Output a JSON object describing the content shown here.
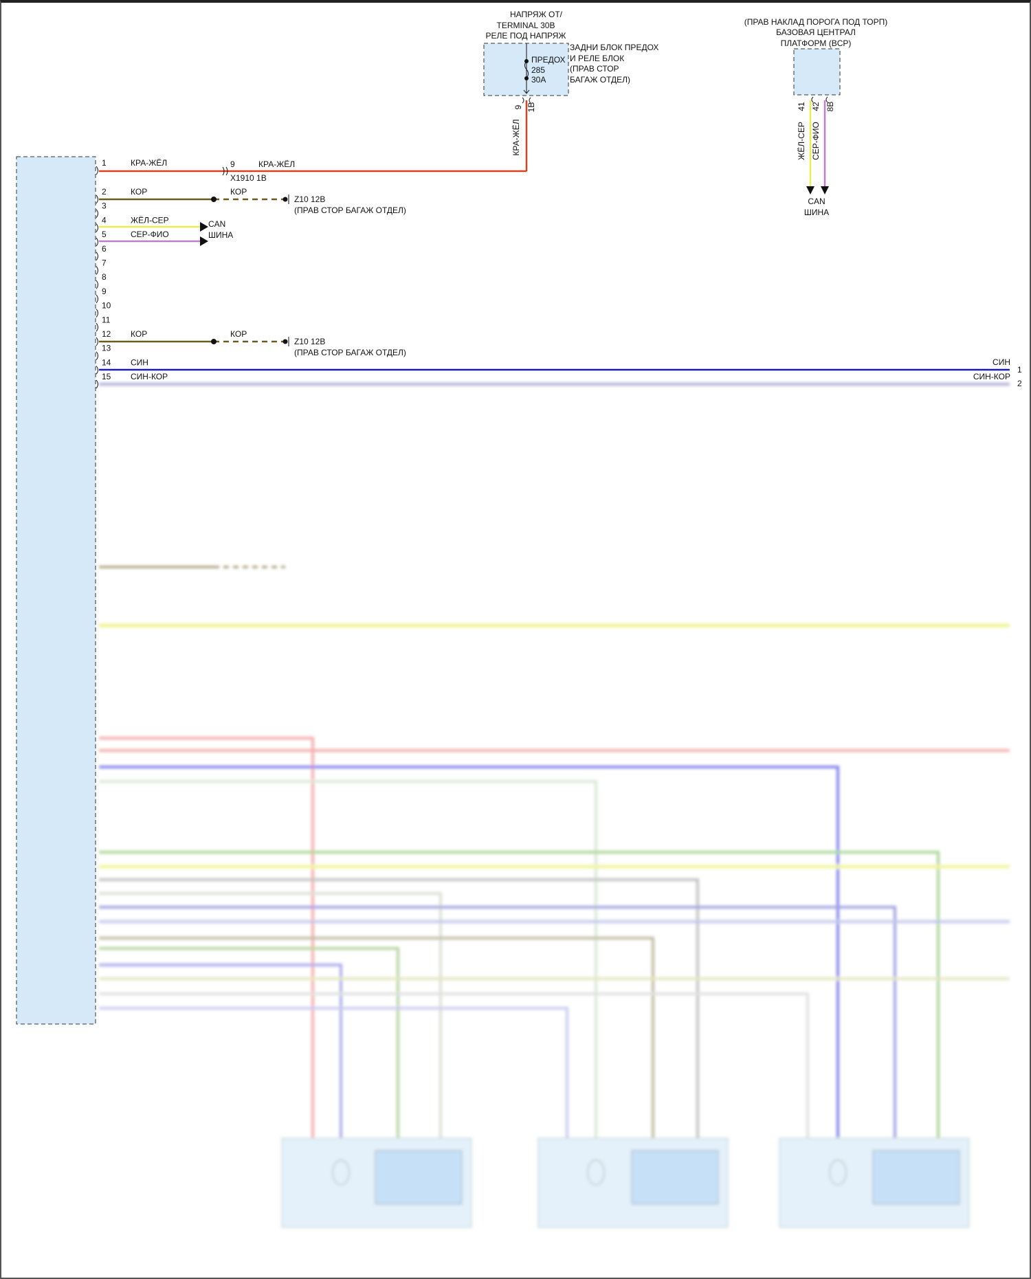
{
  "colors": {
    "module_fill": "#d6e9f8",
    "red_yellow": "#d9411e",
    "brown": "#6b5a1e",
    "yellow_gray": "#e9ec52",
    "gray_violet": "#c07ccc",
    "blue": "#1a1ab8"
  },
  "fuse_block": {
    "header": [
      "НАПРЯЖ ОТ/",
      "TERMINAL 30B",
      "РЕЛЕ ПОД НАПРЯЖ"
    ],
    "side_label": [
      "ЗАДНИ БЛОК ПРЕДОХ",
      "И РЕЛЕ БЛОК",
      "(ПРАВ СТОР",
      "БАГАЖ ОТДЕЛ)"
    ],
    "fuse_label": [
      "ПРЕДОХ",
      "285",
      "30A"
    ],
    "pin_a": "9",
    "pin_b": "1B",
    "wire_label": "КРА-ЖЁЛ"
  },
  "bcp": {
    "header": [
      "(ПРАВ НАКЛАД ПОРОГА ПОД ТОРП)",
      "БАЗОВАЯ ЦЕНТРАЛ",
      "ПЛАТФОРМ (BCP)"
    ],
    "pins": [
      "41",
      "42",
      "8B"
    ],
    "wires": [
      "ЖЁЛ-СЕР",
      "СЕР-ФИО"
    ],
    "can_label": [
      "CAN",
      "ШИНА"
    ]
  },
  "main_module": {
    "pins": [
      {
        "num": "1",
        "wire": "КРА-ЖЁЛ"
      },
      {
        "num": "2",
        "wire": "КОР"
      },
      {
        "num": "3",
        "wire": ""
      },
      {
        "num": "4",
        "wire": "ЖЁЛ-СЕР"
      },
      {
        "num": "5",
        "wire": "СЕР-ФИО"
      },
      {
        "num": "6",
        "wire": ""
      },
      {
        "num": "7",
        "wire": ""
      },
      {
        "num": "8",
        "wire": ""
      },
      {
        "num": "9",
        "wire": ""
      },
      {
        "num": "10",
        "wire": ""
      },
      {
        "num": "11",
        "wire": ""
      },
      {
        "num": "12",
        "wire": "КОР"
      },
      {
        "num": "13",
        "wire": ""
      },
      {
        "num": "14",
        "wire": "СИН"
      },
      {
        "num": "15",
        "wire": "СИН-КОР"
      }
    ]
  },
  "connector_x1910": {
    "pin": "9",
    "wire": "КРА-ЖЁЛ",
    "name": "X1910 1B"
  },
  "ground_1": {
    "wire": "КОР",
    "name": "Z10 12B",
    "location": "(ПРАВ СТОР БАГАЖ ОТДЕЛ)"
  },
  "ground_2": {
    "wire": "КОР",
    "name": "Z10 12B",
    "location": "(ПРАВ СТОР БАГАЖ ОТДЕЛ)"
  },
  "can_bus_left": [
    "CAN",
    "ШИНА"
  ],
  "right_connector": [
    {
      "pin": "1",
      "wire": "СИН"
    },
    {
      "pin": "2",
      "wire": "СИН-КОР"
    }
  ]
}
